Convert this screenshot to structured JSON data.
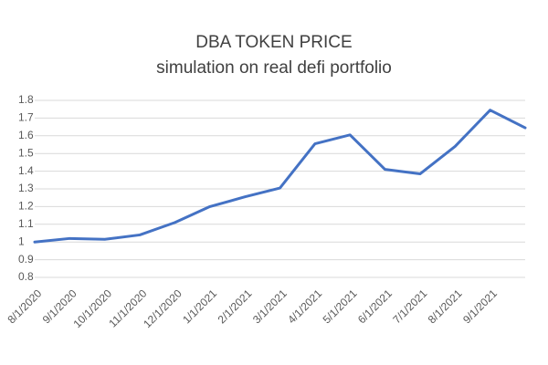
{
  "chart_data": {
    "type": "line",
    "title": "DBA TOKEN PRICE",
    "subtitle": "simulation on real defi portfolio",
    "categories": [
      "8/1/2020",
      "9/1/2020",
      "10/1/2020",
      "11/1/2020",
      "12/1/2020",
      "1/1/2021",
      "2/1/2021",
      "3/1/2021",
      "4/1/2021",
      "5/1/2021",
      "6/1/2021",
      "7/1/2021",
      "8/1/2021",
      "9/1/2021",
      null
    ],
    "series": [
      {
        "name": "DBA TOKEN PRICE",
        "color": "#4472c4",
        "values": [
          1.0,
          1.02,
          1.015,
          1.04,
          1.11,
          1.2,
          1.255,
          1.305,
          1.555,
          1.605,
          1.41,
          1.385,
          1.54,
          1.745,
          1.645
        ]
      }
    ],
    "ylim": [
      0.8,
      1.8
    ],
    "yticks": [
      0.8,
      0.9,
      1,
      1.1,
      1.2,
      1.3,
      1.4,
      1.5,
      1.6,
      1.7,
      1.8
    ],
    "grid": true
  }
}
